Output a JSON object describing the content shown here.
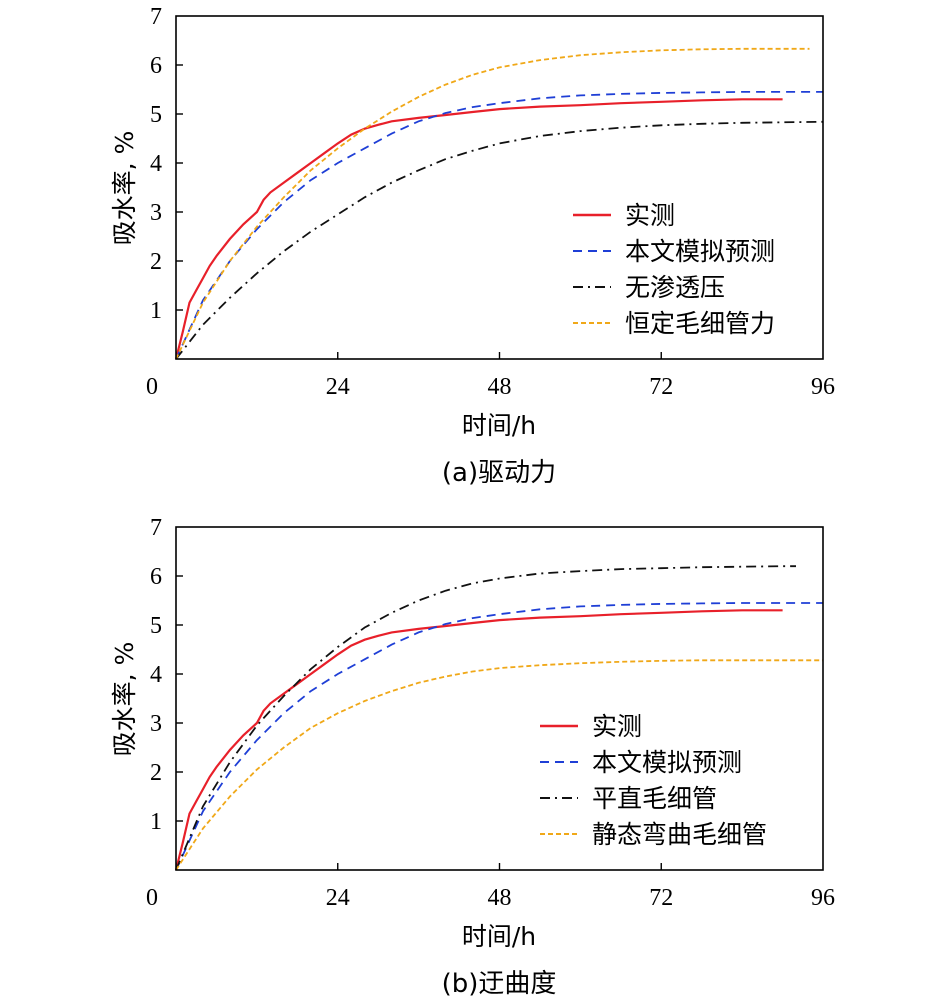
{
  "chart_data": [
    {
      "id": "a",
      "type": "line",
      "caption": "(a)驱动力",
      "xlabel": "时间/h",
      "ylabel": "吸水率, %",
      "xlim": [
        0,
        96
      ],
      "ylim": [
        0,
        7
      ],
      "xticks": [
        0,
        24,
        48,
        72,
        96
      ],
      "yticks": [
        1,
        2,
        3,
        4,
        5,
        6,
        7
      ],
      "legend_position": "lower-right",
      "series": [
        {
          "name": "实测",
          "color": "#e8202a",
          "dash": "solid",
          "x": [
            0,
            1,
            2,
            3,
            4,
            5,
            6,
            8,
            10,
            12,
            13,
            14,
            16,
            18,
            20,
            22,
            24,
            26,
            28,
            30,
            32,
            36,
            40,
            44,
            48,
            54,
            60,
            66,
            72,
            78,
            84,
            90
          ],
          "y": [
            0,
            0.55,
            1.15,
            1.4,
            1.65,
            1.9,
            2.1,
            2.45,
            2.75,
            3.0,
            3.25,
            3.4,
            3.6,
            3.8,
            4.0,
            4.2,
            4.4,
            4.58,
            4.7,
            4.78,
            4.85,
            4.92,
            4.98,
            5.04,
            5.1,
            5.15,
            5.18,
            5.22,
            5.25,
            5.28,
            5.3,
            5.3
          ]
        },
        {
          "name": "本文模拟预测",
          "color": "#1f3fd6",
          "dash": "dash",
          "x": [
            0,
            4,
            8,
            12,
            16,
            20,
            24,
            28,
            32,
            36,
            40,
            44,
            48,
            54,
            60,
            66,
            72,
            78,
            84,
            90,
            96
          ],
          "y": [
            0,
            1.2,
            2.0,
            2.65,
            3.2,
            3.65,
            4.0,
            4.3,
            4.6,
            4.85,
            5.02,
            5.14,
            5.22,
            5.32,
            5.38,
            5.41,
            5.43,
            5.44,
            5.45,
            5.45,
            5.45
          ]
        },
        {
          "name": "无渗透压",
          "color": "#111111",
          "dash": "dashdot",
          "x": [
            0,
            4,
            8,
            12,
            16,
            20,
            24,
            28,
            32,
            36,
            40,
            44,
            48,
            54,
            60,
            66,
            72,
            78,
            84,
            90,
            96
          ],
          "y": [
            0,
            0.7,
            1.25,
            1.75,
            2.2,
            2.6,
            2.95,
            3.3,
            3.6,
            3.85,
            4.08,
            4.25,
            4.4,
            4.55,
            4.65,
            4.72,
            4.77,
            4.8,
            4.82,
            4.83,
            4.84
          ]
        },
        {
          "name": "恒定毛细管力",
          "color": "#f0a818",
          "dash": "shortdash",
          "x": [
            0,
            4,
            8,
            12,
            16,
            20,
            24,
            28,
            32,
            36,
            40,
            44,
            48,
            54,
            60,
            66,
            72,
            78,
            84,
            90,
            94
          ],
          "y": [
            0,
            1.15,
            2.0,
            2.7,
            3.3,
            3.85,
            4.3,
            4.7,
            5.05,
            5.35,
            5.6,
            5.8,
            5.95,
            6.1,
            6.2,
            6.26,
            6.3,
            6.32,
            6.33,
            6.33,
            6.33
          ]
        }
      ]
    },
    {
      "id": "b",
      "type": "line",
      "caption": "(b)迂曲度",
      "xlabel": "时间/h",
      "ylabel": "吸水率, %",
      "xlim": [
        0,
        96
      ],
      "ylim": [
        0,
        7
      ],
      "xticks": [
        0,
        24,
        48,
        72,
        96
      ],
      "yticks": [
        1,
        2,
        3,
        4,
        5,
        6,
        7
      ],
      "legend_position": "lower-right",
      "series": [
        {
          "name": "实测",
          "color": "#e8202a",
          "dash": "solid",
          "x": [
            0,
            1,
            2,
            3,
            4,
            5,
            6,
            8,
            10,
            12,
            13,
            14,
            16,
            18,
            20,
            22,
            24,
            26,
            28,
            30,
            32,
            36,
            40,
            44,
            48,
            54,
            60,
            66,
            72,
            78,
            84,
            90
          ],
          "y": [
            0,
            0.55,
            1.15,
            1.4,
            1.65,
            1.9,
            2.1,
            2.45,
            2.75,
            3.0,
            3.25,
            3.4,
            3.6,
            3.8,
            4.0,
            4.2,
            4.4,
            4.58,
            4.7,
            4.78,
            4.85,
            4.92,
            4.98,
            5.04,
            5.1,
            5.15,
            5.18,
            5.22,
            5.25,
            5.28,
            5.3,
            5.3
          ]
        },
        {
          "name": "本文模拟预测",
          "color": "#1f3fd6",
          "dash": "dash",
          "x": [
            0,
            4,
            8,
            12,
            16,
            20,
            24,
            28,
            32,
            36,
            40,
            44,
            48,
            54,
            60,
            66,
            72,
            78,
            84,
            90,
            96
          ],
          "y": [
            0,
            1.2,
            2.0,
            2.65,
            3.2,
            3.65,
            4.0,
            4.3,
            4.6,
            4.85,
            5.02,
            5.14,
            5.22,
            5.32,
            5.38,
            5.41,
            5.43,
            5.44,
            5.45,
            5.45,
            5.45
          ]
        },
        {
          "name": "平直毛细管",
          "color": "#111111",
          "dash": "dashdot",
          "x": [
            0,
            4,
            8,
            12,
            16,
            20,
            24,
            28,
            32,
            36,
            40,
            44,
            48,
            54,
            60,
            66,
            72,
            78,
            84,
            90,
            92
          ],
          "y": [
            0,
            1.3,
            2.2,
            2.95,
            3.55,
            4.1,
            4.55,
            4.95,
            5.25,
            5.5,
            5.7,
            5.85,
            5.95,
            6.05,
            6.1,
            6.14,
            6.16,
            6.18,
            6.19,
            6.2,
            6.2
          ]
        },
        {
          "name": "静态弯曲毛细管",
          "color": "#f0a818",
          "dash": "shortdash",
          "x": [
            0,
            4,
            8,
            12,
            16,
            20,
            24,
            28,
            32,
            36,
            40,
            44,
            48,
            54,
            60,
            66,
            72,
            78,
            84,
            90,
            96
          ],
          "y": [
            0,
            0.85,
            1.5,
            2.05,
            2.5,
            2.9,
            3.2,
            3.45,
            3.65,
            3.82,
            3.95,
            4.05,
            4.12,
            4.18,
            4.22,
            4.25,
            4.27,
            4.28,
            4.28,
            4.28,
            4.28
          ]
        }
      ]
    }
  ]
}
